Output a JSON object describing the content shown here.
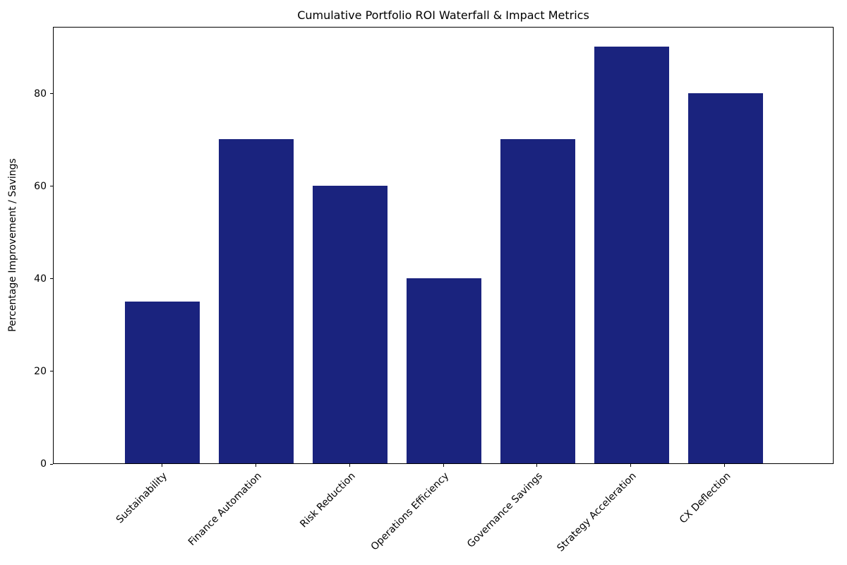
{
  "chart_data": {
    "type": "bar",
    "title": "Cumulative Portfolio ROI Waterfall & Impact Metrics",
    "categories": [
      "Sustainability",
      "Finance Automation",
      "Risk Reduction",
      "Operations Efficiency",
      "Governance Savings",
      "Strategy Acceleration",
      "CX Deflection"
    ],
    "values": [
      35,
      70,
      60,
      40,
      70,
      90,
      80
    ],
    "xlabel": "",
    "ylabel": "Percentage Improvement / Savings",
    "ylim": [
      0,
      94.5
    ],
    "yticks": [
      0,
      20,
      40,
      60,
      80
    ],
    "bar_color": "#1a237e",
    "grid": false,
    "legend": null,
    "x_tick_rotation": 45
  }
}
